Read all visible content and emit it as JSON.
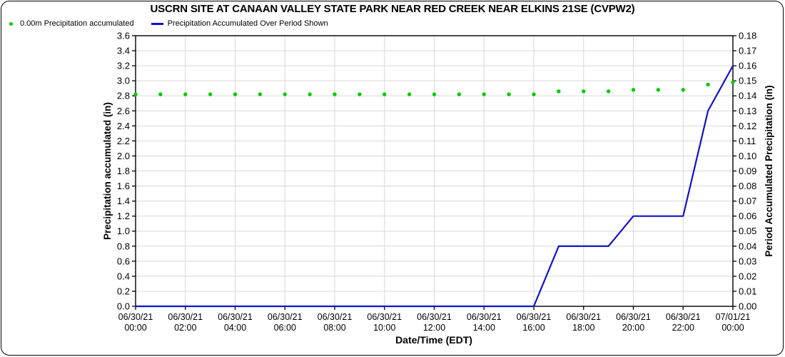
{
  "panel": {
    "background": "#FFFFFF",
    "border_color": "#000000"
  },
  "legend": {
    "items": [
      {
        "label": "0.00m Precipitation accumulated",
        "marker": "dot",
        "color": "#00CC00"
      },
      {
        "label": "Precipitation Accumulated Over Period Shown",
        "marker": "line",
        "color": "#1111CC"
      }
    ]
  },
  "chart_data": {
    "type": "line",
    "title": "USCRN SITE AT CANAAN VALLEY STATE PARK NEAR RED CREEK NEAR ELKINS 21SE (CVPW2)",
    "grid": true,
    "legend_position": "top-left",
    "colors": {
      "grid": "#D8D8D8",
      "axis": "#000000",
      "background": "#FFFFFF",
      "text": "#000000"
    },
    "x_axis": {
      "label": "Date/Time (EDT)",
      "hours_domain": [
        0,
        24
      ],
      "ticks": [
        {
          "hour": 0,
          "date": "06/30/21",
          "time": "00:00"
        },
        {
          "hour": 2,
          "date": "06/30/21",
          "time": "02:00"
        },
        {
          "hour": 4,
          "date": "06/30/21",
          "time": "04:00"
        },
        {
          "hour": 6,
          "date": "06/30/21",
          "time": "06:00"
        },
        {
          "hour": 8,
          "date": "06/30/21",
          "time": "08:00"
        },
        {
          "hour": 10,
          "date": "06/30/21",
          "time": "10:00"
        },
        {
          "hour": 12,
          "date": "06/30/21",
          "time": "12:00"
        },
        {
          "hour": 14,
          "date": "06/30/21",
          "time": "14:00"
        },
        {
          "hour": 16,
          "date": "06/30/21",
          "time": "16:00"
        },
        {
          "hour": 18,
          "date": "06/30/21",
          "time": "18:00"
        },
        {
          "hour": 20,
          "date": "06/30/21",
          "time": "20:00"
        },
        {
          "hour": 22,
          "date": "06/30/21",
          "time": "22:00"
        },
        {
          "hour": 24,
          "date": "07/01/21",
          "time": "00:00"
        }
      ]
    },
    "y_left": {
      "label": "Precipitation accumulated (in)",
      "min": 0.0,
      "max": 3.6,
      "step": 0.2,
      "tick_labels": [
        "0.0",
        "0.2",
        "0.4",
        "0.6",
        "0.8",
        "1.0",
        "1.2",
        "1.4",
        "1.6",
        "1.8",
        "2.0",
        "2.2",
        "2.4",
        "2.6",
        "2.8",
        "3.0",
        "3.2",
        "3.4",
        "3.6"
      ]
    },
    "y_right": {
      "label": "Period Accumulated Precipitation (in)",
      "min": 0.0,
      "max": 0.18,
      "step": 0.01,
      "tick_labels": [
        "0.00",
        "0.01",
        "0.02",
        "0.03",
        "0.04",
        "0.05",
        "0.06",
        "0.07",
        "0.08",
        "0.09",
        "0.10",
        "0.11",
        "0.12",
        "0.13",
        "0.14",
        "0.15",
        "0.16",
        "0.17",
        "0.18"
      ]
    },
    "series": [
      {
        "name": "0.00m Precipitation accumulated",
        "style": "points",
        "axis": "left",
        "color": "#00CC00",
        "hours": [
          0,
          1,
          2,
          3,
          4,
          5,
          6,
          7,
          8,
          9,
          10,
          11,
          12,
          13,
          14,
          15,
          16,
          17,
          18,
          19,
          20,
          21,
          22,
          23,
          24
        ],
        "values": [
          2.82,
          2.82,
          2.82,
          2.82,
          2.82,
          2.82,
          2.82,
          2.82,
          2.82,
          2.82,
          2.82,
          2.82,
          2.82,
          2.82,
          2.82,
          2.82,
          2.82,
          2.86,
          2.86,
          2.86,
          2.88,
          2.88,
          2.88,
          2.95,
          2.98
        ]
      },
      {
        "name": "Precipitation Accumulated Over Period Shown",
        "style": "line",
        "axis": "right",
        "color": "#1111CC",
        "hours": [
          0,
          1,
          2,
          3,
          4,
          5,
          6,
          7,
          8,
          9,
          10,
          11,
          12,
          13,
          14,
          15,
          16,
          17,
          18,
          19,
          20,
          21,
          22,
          23,
          24
        ],
        "values": [
          0,
          0,
          0,
          0,
          0,
          0,
          0,
          0,
          0,
          0,
          0,
          0,
          0,
          0,
          0,
          0,
          0,
          0.04,
          0.04,
          0.04,
          0.06,
          0.06,
          0.06,
          0.13,
          0.16
        ]
      }
    ]
  }
}
